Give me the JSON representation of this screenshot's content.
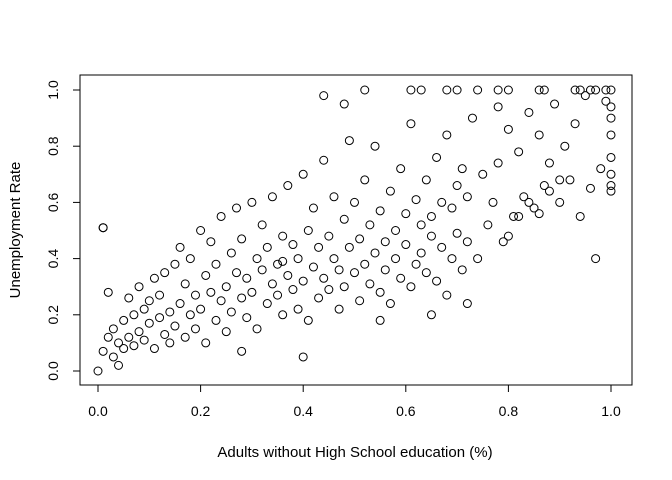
{
  "chart_data": {
    "type": "scatter",
    "title": "",
    "xlabel": "Adults without High School education (%)",
    "ylabel": "Unemployment Rate",
    "xlim": [
      0.0,
      1.0
    ],
    "ylim": [
      0.0,
      1.0
    ],
    "x_ticks": [
      0.0,
      0.2,
      0.4,
      0.6,
      0.8,
      1.0
    ],
    "y_ticks": [
      0.0,
      0.2,
      0.4,
      0.6,
      0.8,
      1.0
    ],
    "x_tick_labels": [
      "0.0",
      "0.2",
      "0.4",
      "0.6",
      "0.8",
      "1.0"
    ],
    "y_tick_labels": [
      "0.0",
      "0.2",
      "0.4",
      "0.6",
      "0.8",
      "1.0"
    ],
    "grid": false,
    "marker": "open-circle",
    "marker_color": "#000000",
    "series": [
      {
        "x": [
          0.0,
          0.01,
          0.01,
          0.02,
          0.02,
          0.03,
          0.03,
          0.04,
          0.04,
          0.05,
          0.05,
          0.06,
          0.06,
          0.07,
          0.07,
          0.08,
          0.08,
          0.09,
          0.09,
          0.1,
          0.1,
          0.11,
          0.11,
          0.12,
          0.12,
          0.13,
          0.13,
          0.14,
          0.14,
          0.15,
          0.15,
          0.16,
          0.16,
          0.17,
          0.17,
          0.18,
          0.18,
          0.19,
          0.19,
          0.2,
          0.2,
          0.21,
          0.21,
          0.22,
          0.22,
          0.23,
          0.23,
          0.24,
          0.24,
          0.25,
          0.25,
          0.26,
          0.26,
          0.27,
          0.27,
          0.28,
          0.28,
          0.29,
          0.29,
          0.3,
          0.3,
          0.31,
          0.31,
          0.32,
          0.32,
          0.33,
          0.33,
          0.34,
          0.34,
          0.35,
          0.35,
          0.36,
          0.36,
          0.37,
          0.37,
          0.38,
          0.38,
          0.39,
          0.39,
          0.4,
          0.4,
          0.41,
          0.41,
          0.42,
          0.42,
          0.43,
          0.43,
          0.44,
          0.44,
          0.45,
          0.45,
          0.46,
          0.46,
          0.47,
          0.47,
          0.48,
          0.48,
          0.49,
          0.49,
          0.5,
          0.5,
          0.51,
          0.51,
          0.52,
          0.52,
          0.53,
          0.53,
          0.54,
          0.54,
          0.55,
          0.55,
          0.56,
          0.56,
          0.57,
          0.57,
          0.58,
          0.58,
          0.59,
          0.59,
          0.6,
          0.6,
          0.61,
          0.61,
          0.62,
          0.62,
          0.63,
          0.63,
          0.64,
          0.64,
          0.65,
          0.65,
          0.66,
          0.66,
          0.67,
          0.67,
          0.68,
          0.68,
          0.69,
          0.69,
          0.7,
          0.7,
          0.71,
          0.71,
          0.72,
          0.72,
          0.73,
          0.74,
          0.75,
          0.76,
          0.77,
          0.78,
          0.79,
          0.8,
          0.81,
          0.82,
          0.83,
          0.84,
          0.85,
          0.86,
          0.87,
          0.88,
          0.89,
          0.9,
          0.91,
          0.92,
          0.93,
          0.94,
          0.95,
          0.96,
          0.97,
          0.98,
          0.99,
          1.0,
          1.0,
          1.0,
          1.0,
          1.0,
          1.0,
          1.0,
          1.0,
          0.44,
          0.48,
          0.52,
          0.61,
          0.63,
          0.68,
          0.7,
          0.74,
          0.78,
          0.8,
          0.86,
          0.87,
          0.93,
          0.94,
          0.96,
          0.97,
          0.99,
          0.01,
          0.36,
          0.28,
          0.4,
          0.55,
          0.65,
          0.72,
          0.78,
          0.8,
          0.82,
          0.84,
          0.86,
          0.88,
          0.9
        ],
        "y": [
          0.0,
          0.07,
          0.51,
          0.12,
          0.28,
          0.05,
          0.15,
          0.1,
          0.02,
          0.18,
          0.08,
          0.12,
          0.26,
          0.2,
          0.09,
          0.3,
          0.14,
          0.22,
          0.11,
          0.25,
          0.17,
          0.33,
          0.08,
          0.19,
          0.27,
          0.13,
          0.35,
          0.21,
          0.1,
          0.38,
          0.16,
          0.24,
          0.44,
          0.12,
          0.31,
          0.2,
          0.4,
          0.15,
          0.27,
          0.5,
          0.22,
          0.34,
          0.1,
          0.28,
          0.46,
          0.18,
          0.38,
          0.25,
          0.55,
          0.3,
          0.14,
          0.42,
          0.21,
          0.35,
          0.58,
          0.26,
          0.47,
          0.19,
          0.33,
          0.6,
          0.28,
          0.4,
          0.15,
          0.36,
          0.52,
          0.24,
          0.44,
          0.31,
          0.62,
          0.27,
          0.38,
          0.48,
          0.2,
          0.34,
          0.66,
          0.29,
          0.45,
          0.22,
          0.4,
          0.7,
          0.32,
          0.5,
          0.18,
          0.37,
          0.58,
          0.26,
          0.44,
          0.33,
          0.75,
          0.29,
          0.48,
          0.4,
          0.62,
          0.22,
          0.36,
          0.54,
          0.3,
          0.44,
          0.82,
          0.35,
          0.6,
          0.25,
          0.47,
          0.38,
          0.68,
          0.31,
          0.52,
          0.42,
          0.8,
          0.28,
          0.57,
          0.46,
          0.36,
          0.64,
          0.24,
          0.5,
          0.4,
          0.72,
          0.33,
          0.56,
          0.45,
          0.88,
          0.3,
          0.61,
          0.38,
          0.52,
          0.42,
          0.68,
          0.35,
          0.55,
          0.48,
          0.76,
          0.32,
          0.6,
          0.44,
          0.84,
          0.27,
          0.58,
          0.4,
          0.66,
          0.49,
          0.72,
          0.36,
          0.62,
          0.46,
          0.9,
          0.4,
          0.7,
          0.52,
          0.6,
          0.74,
          0.46,
          0.86,
          0.55,
          0.78,
          0.62,
          0.92,
          0.58,
          0.84,
          0.66,
          0.74,
          0.95,
          0.6,
          0.8,
          0.68,
          0.88,
          0.55,
          0.98,
          0.65,
          0.4,
          0.72,
          0.96,
          0.66,
          1.0,
          0.64,
          0.7,
          0.76,
          0.84,
          0.9,
          0.94,
          0.98,
          0.95,
          1.0,
          1.0,
          1.0,
          1.0,
          1.0,
          1.0,
          1.0,
          1.0,
          1.0,
          1.0,
          1.0,
          1.0,
          1.0,
          1.0,
          1.0,
          0.51,
          0.39,
          0.07,
          0.05,
          0.18,
          0.2,
          0.24,
          0.94,
          0.48,
          0.55,
          0.6,
          0.56,
          0.64,
          0.68
        ]
      }
    ]
  }
}
